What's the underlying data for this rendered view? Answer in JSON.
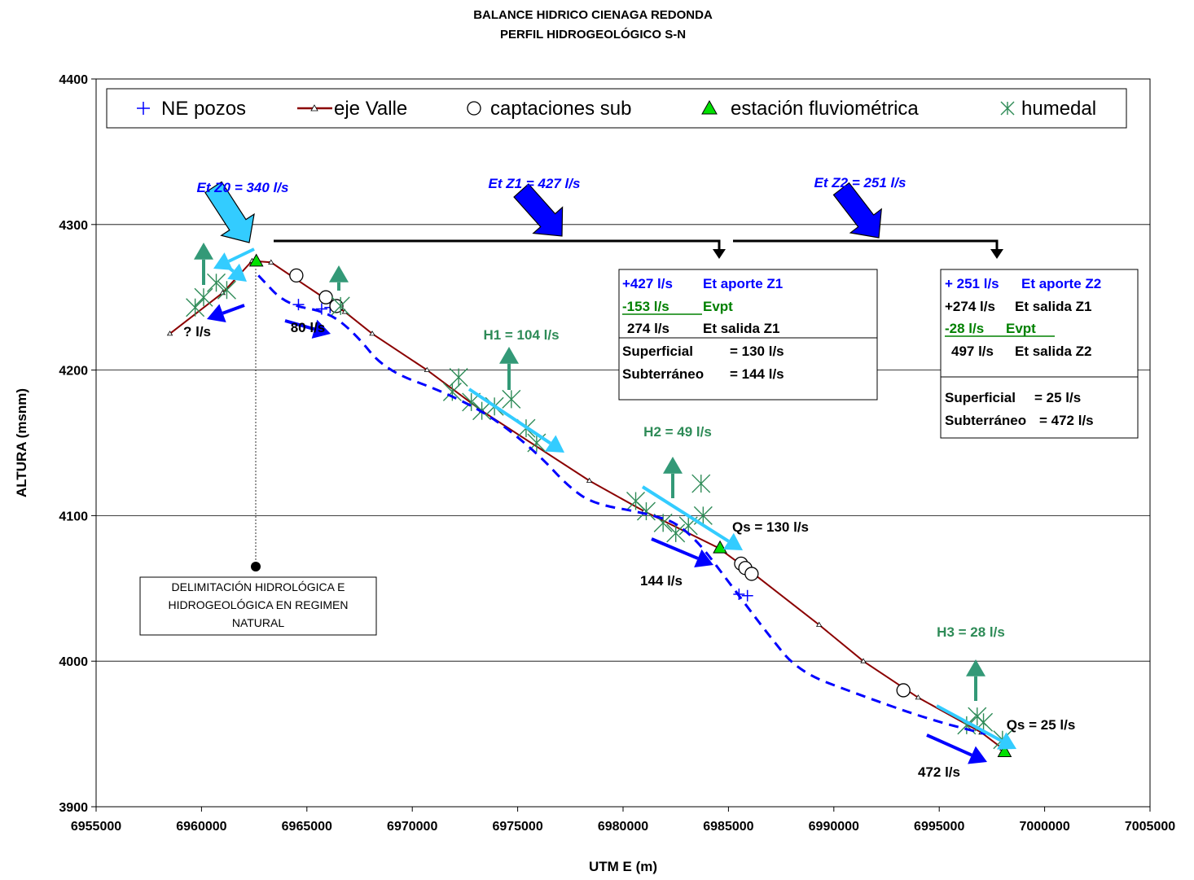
{
  "chart_data": {
    "type": "line",
    "title": "BALANCE HIDRICO CIENAGA REDONDA",
    "subtitle": "PERFIL HIDROGEOLÓGICO S-N",
    "xlabel": "UTM E (m)",
    "ylabel": "ALTURA (msnm)",
    "xlim": [
      6955000,
      7005000
    ],
    "ylim": [
      3900,
      4400
    ],
    "x_ticks": [
      "6955000",
      "6960000",
      "6965000",
      "6970000",
      "6975000",
      "6980000",
      "6985000",
      "6990000",
      "6995000",
      "7000000",
      "7005000"
    ],
    "y_ticks": [
      "3900",
      "4000",
      "4100",
      "4200",
      "4300",
      "4400"
    ],
    "grid": "horizontal",
    "legend_position": "top",
    "legend": [
      "NE pozos",
      "eje Valle",
      "captaciones sub",
      "estación fluviométrica",
      "humedal"
    ],
    "series": [
      {
        "name": "eje Valle",
        "marker": "triangle",
        "color": "#8b0000",
        "x": [
          6958500,
          6961000,
          6962400,
          6963300,
          6966800,
          6968100,
          6970700,
          6973300,
          6978400,
          6981000,
          6984500,
          6986200,
          6989300,
          6991400,
          6994000,
          6997000,
          6998000
        ],
        "y": [
          4225,
          4253,
          4275,
          4274,
          4240,
          4225,
          4200,
          4172,
          4124,
          4103,
          4078,
          4060,
          4025,
          4000,
          3975,
          3951,
          3940
        ]
      },
      {
        "name": "NE pozos",
        "marker": "plus",
        "color": "#0000ff",
        "x": [
          6964600,
          6965700,
          6966100,
          6985500,
          6985900
        ],
        "y": [
          4245,
          4242,
          4243,
          4046,
          4045
        ]
      },
      {
        "name": "captaciones sub",
        "marker": "circle",
        "color": "#000000",
        "x": [
          6964500,
          6965900,
          6966400,
          6985600,
          6985800,
          6986100,
          6993300
        ],
        "y": [
          4265,
          4250,
          4244,
          4067,
          4064,
          4060,
          3980
        ]
      },
      {
        "name": "estación fluviométrica",
        "marker": "triangle",
        "color": "#00e000",
        "x": [
          6962600,
          6984600,
          6998100
        ],
        "y": [
          4275,
          4078,
          3938
        ]
      },
      {
        "name": "humedal",
        "marker": "asterisk",
        "color": "#2e8b57",
        "x": [
          6959700,
          6960100,
          6960700,
          6961200,
          6966600,
          6971900,
          6972200,
          6972800,
          6973300,
          6973900,
          6974700,
          6975400,
          6975900,
          6980600,
          6981100,
          6981900,
          6982500,
          6983100,
          6983700,
          6983800,
          6996300,
          6996800,
          6997100,
          6998000
        ],
        "y": [
          4243,
          4250,
          4260,
          4255,
          4244,
          4185,
          4195,
          4178,
          4172,
          4175,
          4180,
          4160,
          4150,
          4110,
          4103,
          4095,
          4088,
          4093,
          4122,
          4100,
          3956,
          3962,
          3958,
          3946
        ]
      },
      {
        "name": "",
        "marker": "none",
        "color": "#0000ff",
        "dash": true,
        "x": [
          6962700,
          6964000,
          6966000,
          6967300,
          6968700,
          6971500,
          6973800,
          6976000,
          6977400,
          6978600,
          6981000,
          6983000,
          6985500,
          6986800,
          6988300,
          6991000,
          6994500,
          6997200
        ],
        "y": [
          4265,
          4245,
          4240,
          4225,
          4200,
          4185,
          4168,
          4142,
          4120,
          4108,
          4102,
          4093,
          4045,
          4020,
          3993,
          3978,
          3960,
          3950
        ]
      }
    ],
    "annotations": [
      {
        "text": "Et Z0 = 340 l/s",
        "color": "#0000ff"
      },
      {
        "text": "Et Z1 = 427 l/s",
        "color": "#0000ff"
      },
      {
        "text": "Et Z2 = 251 l/s",
        "color": "#0000ff"
      },
      {
        "text": "? l/s",
        "color": "#000000"
      },
      {
        "text": "80 l/s",
        "color": "#000000"
      },
      {
        "text": "H1 = 104 l/s",
        "color": "#2e8b57"
      },
      {
        "text": "H2 = 49 l/s",
        "color": "#2e8b57"
      },
      {
        "text": "H3 = 28 l/s",
        "color": "#2e8b57"
      },
      {
        "text": "Qs = 130 l/s",
        "color": "#000000"
      },
      {
        "text": "144 l/s",
        "color": "#000000"
      },
      {
        "text": "Qs = 25 l/s",
        "color": "#000000"
      },
      {
        "text": "472 l/s",
        "color": "#000000"
      }
    ],
    "box_z1": [
      {
        "a": "+427 l/s",
        "b": "Et aporte Z1",
        "color": "#0000ff"
      },
      {
        "a": "-153 l/s",
        "b": "Evpt",
        "color": "#008000"
      },
      {
        "a": "274 l/s",
        "b": "Et salida Z1",
        "color": "#000000"
      },
      {
        "a": "Superficial",
        "b": "= 130 l/s",
        "color": "#000000"
      },
      {
        "a": "Subterráneo",
        "b": "= 144 l/s",
        "color": "#000000"
      }
    ],
    "box_z2": [
      {
        "a": "+ 251 l/s",
        "b": "Et aporte Z2",
        "color": "#0000ff"
      },
      {
        "a": "+274 l/s",
        "b": "Et salida Z1",
        "color": "#000000"
      },
      {
        "a": "-28 l/s",
        "b": "Evpt",
        "color": "#008000"
      },
      {
        "a": "497 l/s",
        "b": "Et salida Z2",
        "color": "#000000"
      },
      {
        "a": "Superficial",
        "b": "= 25  l/s",
        "color": "#000000"
      },
      {
        "a": "Subterráneo",
        "b": "= 472  l/s",
        "color": "#000000"
      }
    ],
    "note_lines": [
      "DELIMITACIÓN HIDROLÓGICA E",
      "HIDROGEOLÓGICA EN REGIMEN",
      "NATURAL"
    ]
  }
}
